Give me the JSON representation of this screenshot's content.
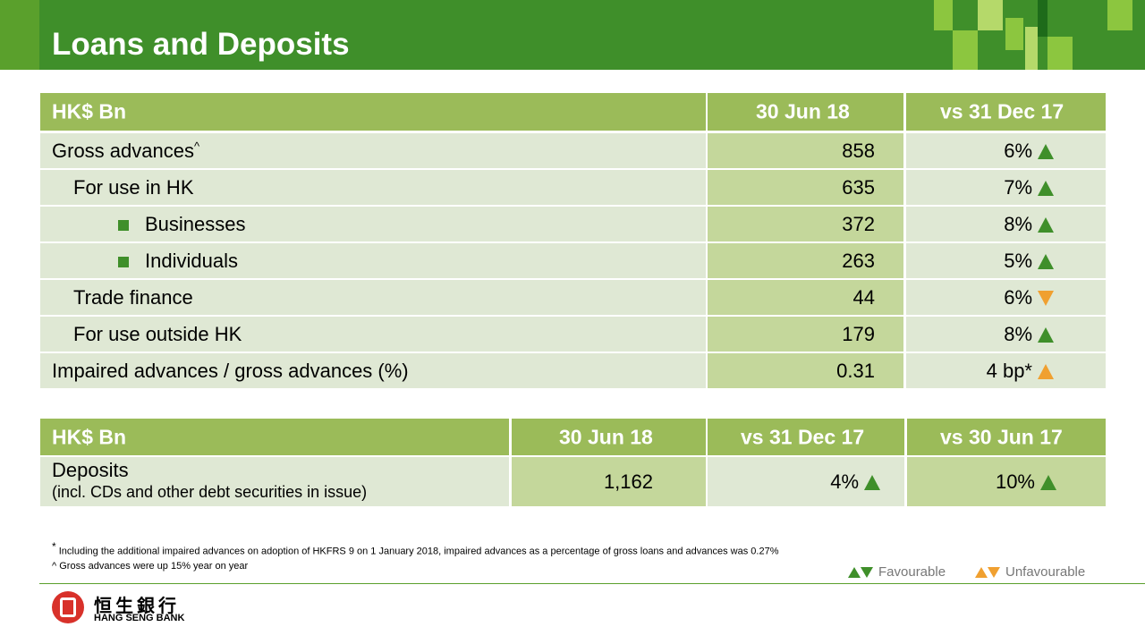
{
  "title": "Loans and Deposits",
  "table1": {
    "headers": [
      "HK$ Bn",
      "30 Jun 18",
      "vs 31 Dec 17"
    ],
    "rows": [
      {
        "label": "Gross advances",
        "sup": "^",
        "value": "858",
        "change": "6%",
        "trend": "up",
        "favourable": true
      },
      {
        "label": "For use in HK",
        "value": "635",
        "change": "7%",
        "trend": "up",
        "favourable": true
      },
      {
        "label": "Businesses",
        "value": "372",
        "change": "8%",
        "trend": "up",
        "favourable": true
      },
      {
        "label": "Individuals",
        "value": "263",
        "change": "5%",
        "trend": "up",
        "favourable": true
      },
      {
        "label": "Trade finance",
        "value": "44",
        "change": "6%",
        "trend": "down",
        "favourable": false
      },
      {
        "label": "For use outside HK",
        "value": "179",
        "change": "8%",
        "trend": "up",
        "favourable": true
      },
      {
        "label": "Impaired advances / gross advances (%)",
        "value": "0.31",
        "change": "4 bp*",
        "trend": "up",
        "favourable": false
      }
    ]
  },
  "table2": {
    "headers": [
      "HK$ Bn",
      "30 Jun 18",
      "vs 31 Dec 17",
      "vs 30 Jun 17"
    ],
    "row": {
      "label": "Deposits",
      "sublabel": "(incl. CDs and other debt securities in issue)",
      "value": "1,162",
      "change1": "4%",
      "change2": "10%"
    }
  },
  "footnotes": {
    "star_mark": "*",
    "star": "Including the additional impaired advances on adoption of HKFRS 9 on 1 January 2018, impaired advances as a percentage of gross loans and advances was 0.27%",
    "caret_mark": "^",
    "caret": "Gross advances were up 15% year on year"
  },
  "legend": {
    "favourable": "Favourable",
    "unfavourable": "Unfavourable"
  },
  "logo": {
    "chinese": "恒生銀行",
    "english": "HANG SENG BANK"
  },
  "colors": {
    "dark_green": "#3f8f2a",
    "light_green": "#9bbb59",
    "orange": "#f0a030",
    "logo_red": "#d8312a"
  }
}
